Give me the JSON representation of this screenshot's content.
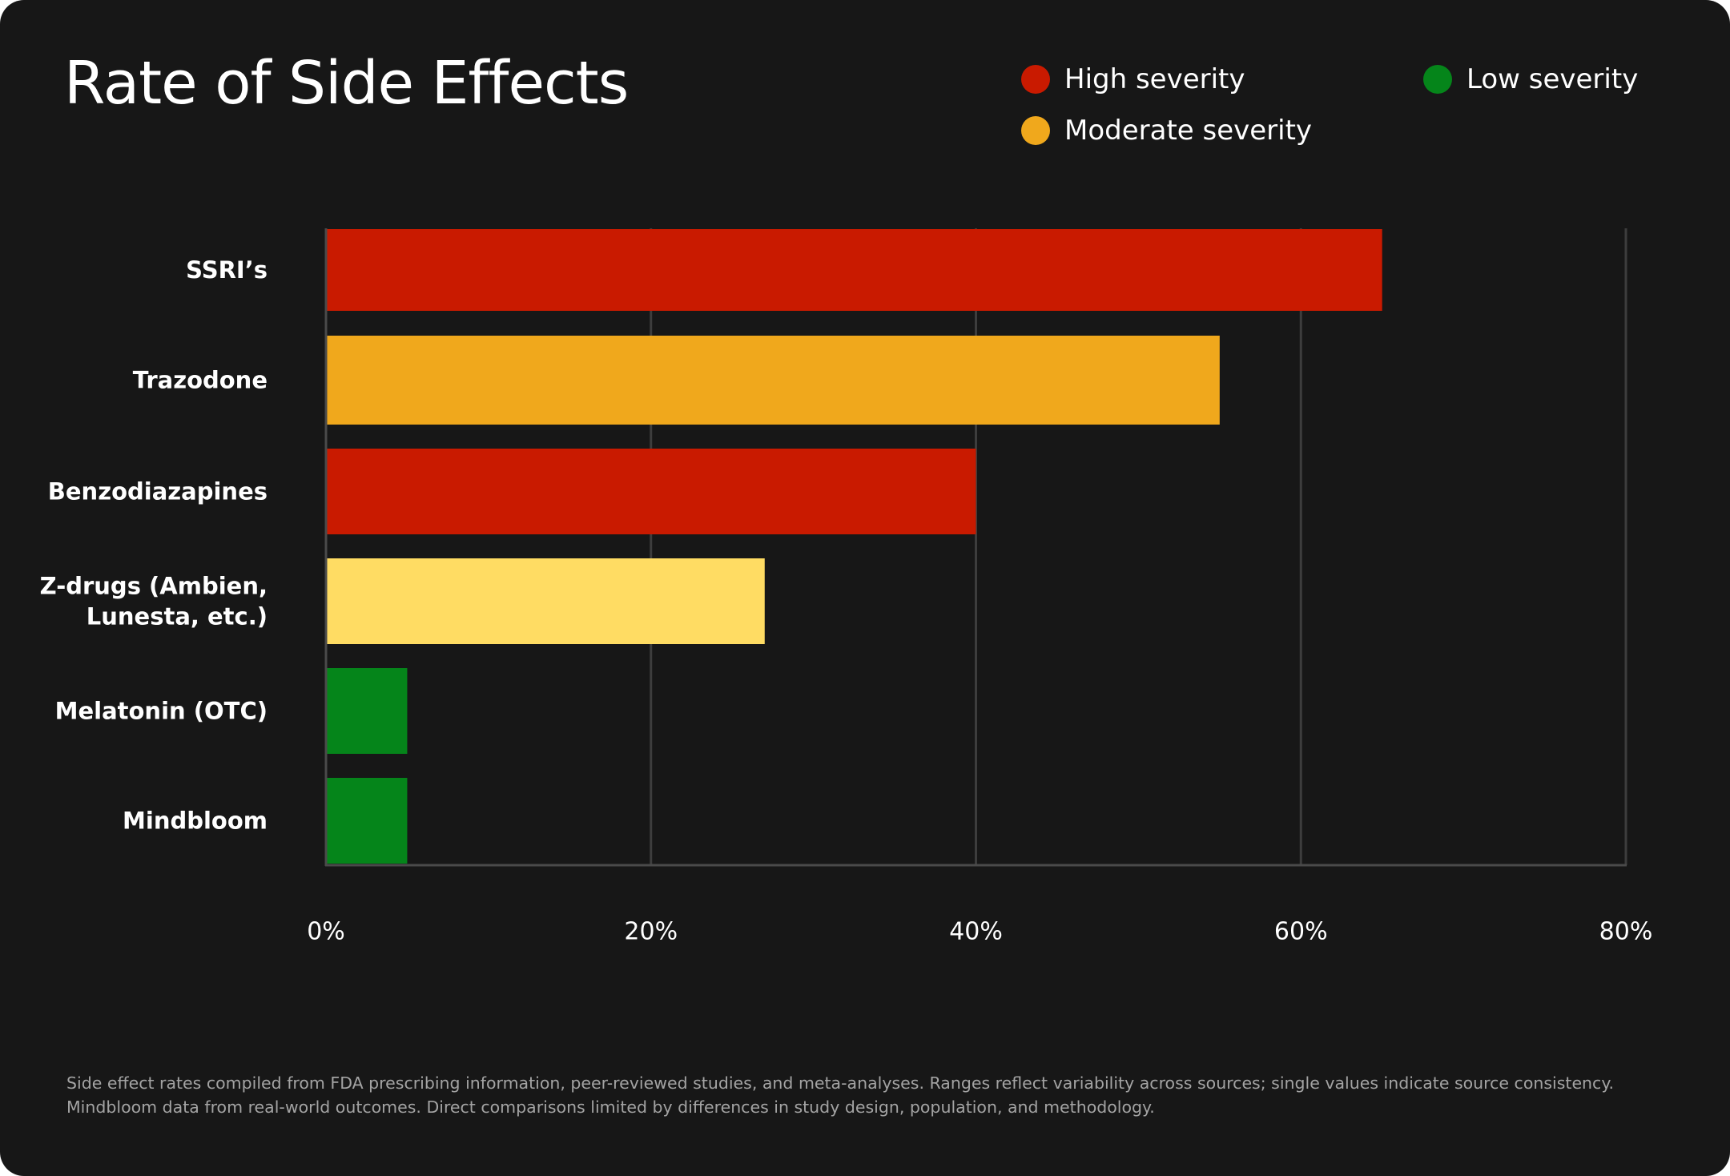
{
  "chart_data": {
    "type": "bar",
    "orientation": "horizontal",
    "title": "Rate of Side Effects",
    "categories": [
      "SSRI’s",
      "Trazodone",
      "Benzodiazapines",
      "Z-drugs (Ambien, Lunesta, etc.)",
      "Melatonin (OTC)",
      "Mindbloom"
    ],
    "category_lines": [
      [
        "SSRI’s"
      ],
      [
        "Trazodone"
      ],
      [
        "Benzodiazapines"
      ],
      [
        "Z-drugs (Ambien,",
        "Lunesta, etc.)"
      ],
      [
        "Melatonin (OTC)"
      ],
      [
        "Mindbloom"
      ]
    ],
    "values": [
      65,
      55,
      40,
      27,
      5,
      5
    ],
    "severity": [
      "high",
      "moderate",
      "high",
      "mild-moderate",
      "low",
      "low"
    ],
    "bar_colors": [
      "#C91A00",
      "#F0A81C",
      "#C91A00",
      "#FFDC63",
      "#05851A",
      "#05851A"
    ],
    "xlim": [
      0,
      80
    ],
    "xticks": [
      0,
      20,
      40,
      60,
      80
    ],
    "xtick_labels": [
      "0%",
      "20%",
      "40%",
      "60%",
      "80%"
    ],
    "xlabel": "",
    "ylabel": "",
    "grid": true,
    "legend": {
      "placement": "top-right",
      "entries": [
        {
          "label": "High severity",
          "color": "#C91A00"
        },
        {
          "label": "Moderate severity",
          "color": "#F0A81C"
        },
        {
          "label": "Low severity",
          "color": "#05851A"
        }
      ]
    }
  },
  "colors": {
    "background": "#171717",
    "text": "#FFFFFF",
    "grid": "#3D3D3D",
    "axis": "#4A4A4A",
    "footnote": "#A3A3A3"
  },
  "footnote": "Side effect rates compiled from FDA prescribing information, peer-reviewed studies, and meta-analyses. Ranges reflect variability across sources; single values indicate source consistency. Mindbloom data from real-world outcomes. Direct comparisons limited by differences in study design, population, and methodology."
}
